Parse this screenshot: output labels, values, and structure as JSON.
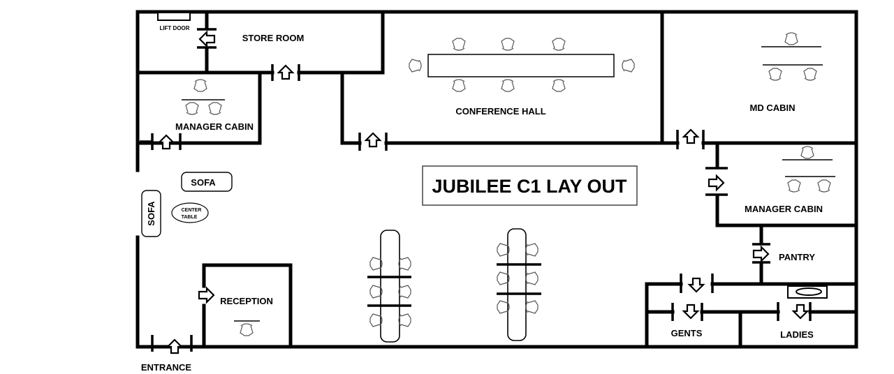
{
  "title": "JUBILEE C1 LAY OUT",
  "labels": {
    "lift_door": "LIFT DOOR",
    "store_room": "STORE ROOM",
    "conference_hall": "CONFERENCE HALL",
    "md_cabin": "MD CABIN",
    "manager_cabin_left": "MANAGER CABIN",
    "manager_cabin_right": "MANAGER CABIN",
    "sofa_top": "SOFA",
    "sofa_side": "SOFA",
    "center_table_1": "CENTER",
    "center_table_2": "TABLE",
    "reception": "RECEPTION",
    "pantry": "PANTRY",
    "gents": "GENTS",
    "ladies": "LADIES",
    "entrance": "ENTRANCE"
  },
  "icons": {
    "door_arrow": "outlined-arrow-icon",
    "chair": "chair-icon",
    "desk": "desk-icon",
    "table": "table-icon",
    "sink": "wash-basin-icon"
  }
}
